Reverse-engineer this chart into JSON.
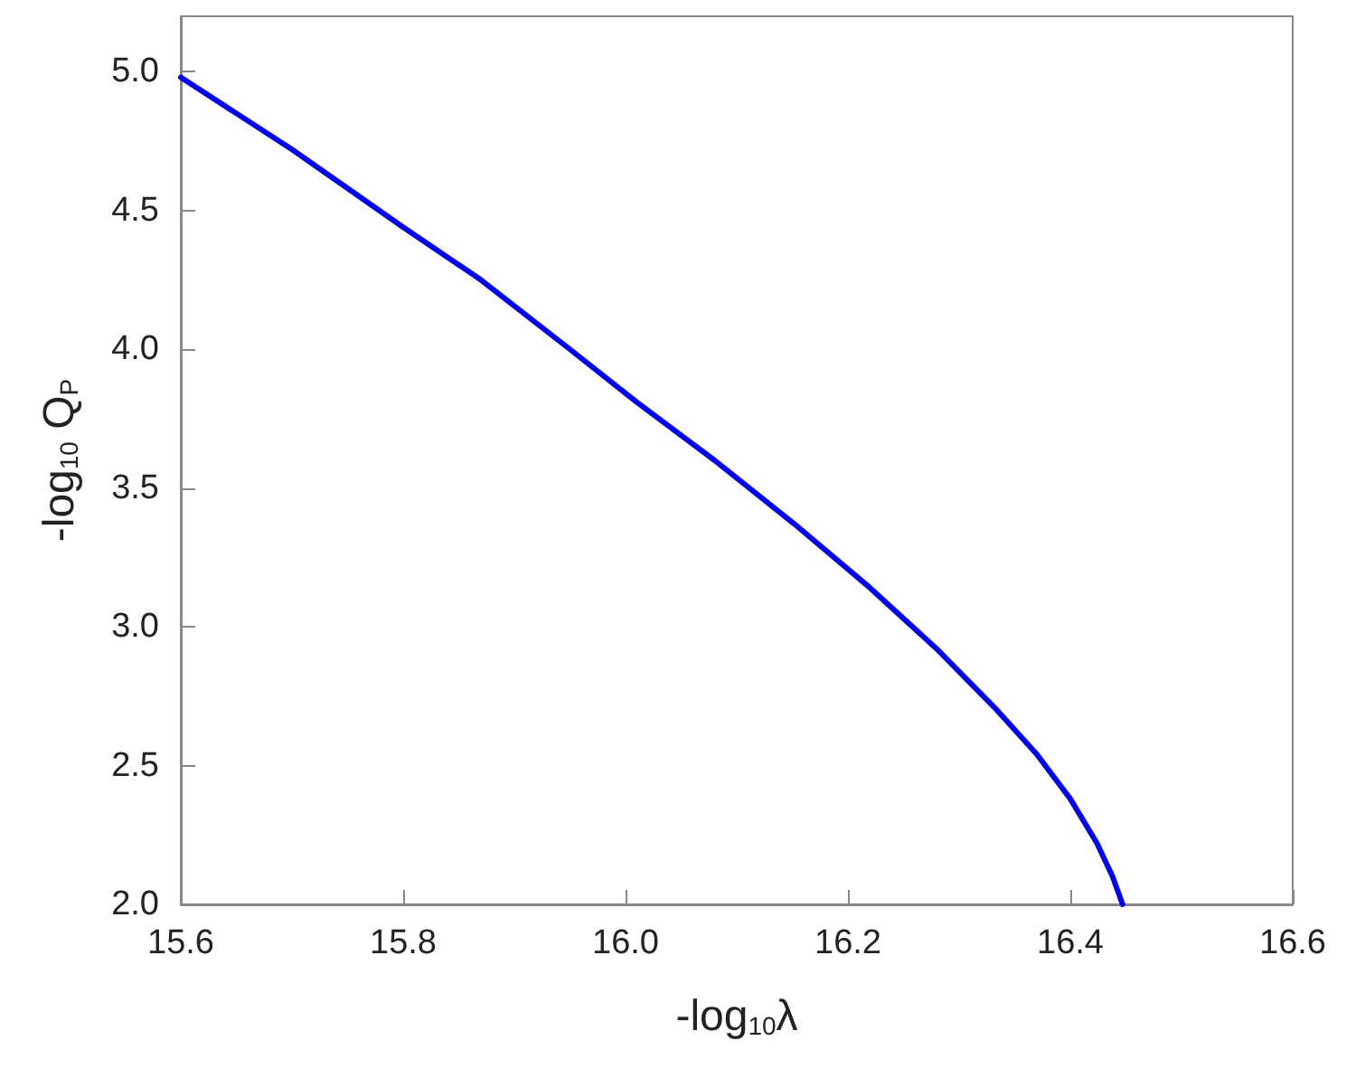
{
  "chart_data": {
    "type": "line",
    "xlabel": "-log$_{10}$λ",
    "ylabel": "-log$_{10}$ Q$_{P}$",
    "series": [
      {
        "color": "#0000ff",
        "x": [
          15.6,
          15.7,
          15.8,
          15.87,
          15.95,
          16.01,
          16.08,
          16.152,
          16.22,
          16.28,
          16.334,
          16.37,
          16.4,
          16.424,
          16.438,
          16.447
        ],
        "values": [
          4.98,
          4.72,
          4.44,
          4.25,
          4.0,
          3.81,
          3.6,
          3.37,
          3.14,
          2.92,
          2.7,
          2.54,
          2.38,
          2.22,
          2.1,
          2.0
        ]
      }
    ],
    "xlim": [
      15.6,
      16.6
    ],
    "xticks": [
      15.6,
      15.8,
      {
        "value": 16,
        "label": "16.0"
      },
      16.2,
      16.4,
      16.6
    ],
    "ylim": [
      2,
      5.2
    ],
    "yticks": [
      {
        "value": 2,
        "label": "2.0"
      },
      2.5,
      {
        "value": 3,
        "label": "3.0"
      },
      3.5,
      {
        "value": 4,
        "label": "4.0"
      },
      4.5,
      {
        "value": 5,
        "label": "5.0"
      }
    ],
    "grid": false,
    "marker": "none",
    "line_style": "solid"
  }
}
